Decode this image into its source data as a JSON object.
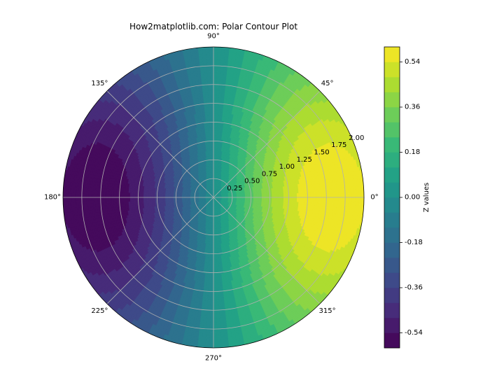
{
  "chart_data": {
    "type": "polar-contour",
    "title": "How2matplotlib.com: Polar Contour Plot",
    "angle_ticks": [
      {
        "deg": 0,
        "label": "0°"
      },
      {
        "deg": 45,
        "label": "45°"
      },
      {
        "deg": 90,
        "label": "90°"
      },
      {
        "deg": 135,
        "label": "135°"
      },
      {
        "deg": 180,
        "label": "180°"
      },
      {
        "deg": 225,
        "label": "225°"
      },
      {
        "deg": 270,
        "label": "270°"
      },
      {
        "deg": 315,
        "label": "315°"
      }
    ],
    "radial_ticks": [
      {
        "r": 0.25,
        "label": "0.25"
      },
      {
        "r": 0.5,
        "label": "0.50"
      },
      {
        "r": 0.75,
        "label": "0.75"
      },
      {
        "r": 1.0,
        "label": "1.00"
      },
      {
        "r": 1.25,
        "label": "1.25"
      },
      {
        "r": 1.5,
        "label": "1.50"
      },
      {
        "r": 1.75,
        "label": "1.75"
      },
      {
        "r": 2.0,
        "label": "2.00"
      }
    ],
    "rlim": [
      0,
      2
    ],
    "radial_label_angle_deg": 22.5,
    "grid": true,
    "z_range": [
      -0.6,
      0.6
    ],
    "levels": [
      -0.6,
      -0.54,
      -0.48,
      -0.42,
      -0.36,
      -0.3,
      -0.24,
      -0.18,
      -0.12,
      -0.06,
      0.0,
      0.06,
      0.12,
      0.18,
      0.24,
      0.3,
      0.36,
      0.42,
      0.48,
      0.54,
      0.6
    ],
    "colorbar": {
      "label": "Z values",
      "ticks": [
        {
          "v": -0.54,
          "label": "-0.54"
        },
        {
          "v": -0.36,
          "label": "-0.36"
        },
        {
          "v": -0.18,
          "label": "-0.18"
        },
        {
          "v": 0.0,
          "label": "0.00"
        },
        {
          "v": 0.18,
          "label": "0.18"
        },
        {
          "v": 0.36,
          "label": "0.36"
        },
        {
          "v": 0.54,
          "label": "0.54"
        }
      ]
    },
    "colormap": "viridis",
    "colormap_stops": [
      "#440154",
      "#482878",
      "#3e4989",
      "#31688e",
      "#26828e",
      "#1f9e89",
      "#35b779",
      "#6ece58",
      "#b5de2b",
      "#fde725"
    ]
  }
}
